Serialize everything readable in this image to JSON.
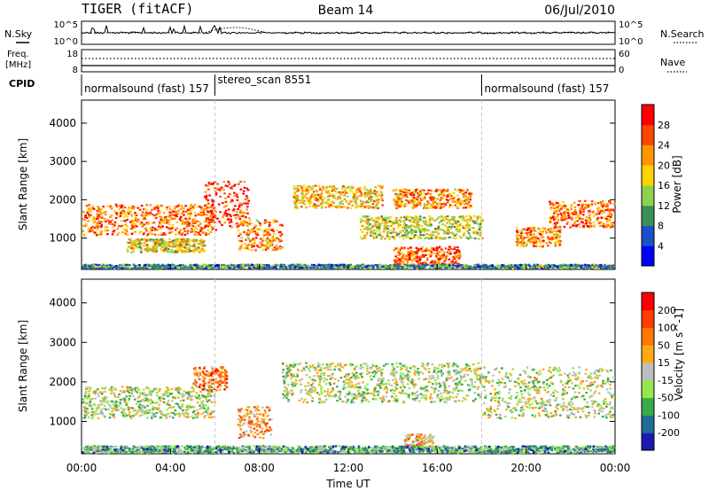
{
  "header": {
    "radar": "TIGER (fitACF)",
    "beam": "Beam 14",
    "date": "06/Jul/2010"
  },
  "top_panels": {
    "nsky_label": "N.Sky",
    "nsky_tick_top": "10^5",
    "nsky_tick_bottom": "10^0",
    "nsearch_label": "N.Search",
    "nsearch_tick_top": "10^5",
    "nsearch_tick_bottom": "10^0",
    "freq_label_1": "Freq.",
    "freq_label_2": "[MHz]",
    "freq_tick_top": "18",
    "freq_tick_bottom": "8",
    "nave_label": "Nave",
    "nave_tick_top": "60",
    "nave_tick_bottom": "0",
    "cpid_label": "CPID",
    "cpid_segments": [
      {
        "label": "normalsound (fast) 157",
        "start": 0,
        "end": 6
      },
      {
        "label": "stereo_scan 8551",
        "start": 6,
        "end": 18
      },
      {
        "label": "normalsound (fast) 157",
        "start": 18,
        "end": 24
      }
    ]
  },
  "chart_data": [
    {
      "type": "heatmap",
      "name": "power",
      "ylabel": "Slant Range [km]",
      "xlabel": "Time UT",
      "x_range_hours": [
        0,
        24
      ],
      "ylim": [
        180,
        4600
      ],
      "yticks": [
        1000,
        2000,
        3000,
        4000
      ],
      "colorbar_label": "Power [dB]",
      "colorbar_ticks": [
        "4",
        "8",
        "12",
        "16",
        "20",
        "24",
        "28"
      ],
      "colorbar_colors": [
        "#0000ff",
        "#1c50c8",
        "#3a8f5a",
        "#8cd24a",
        "#ffd200",
        "#ff9600",
        "#ff4600",
        "#ff0000"
      ],
      "clusters": [
        {
          "t0": 0.0,
          "t1": 6.0,
          "r0": 1100,
          "r1": 1900,
          "level": 0.75
        },
        {
          "t0": 2.0,
          "t1": 5.5,
          "r0": 650,
          "r1": 1000,
          "level": 0.55
        },
        {
          "t0": 5.5,
          "t1": 7.5,
          "r0": 1300,
          "r1": 2500,
          "level": 0.85
        },
        {
          "t0": 7.0,
          "t1": 9.0,
          "r0": 700,
          "r1": 1500,
          "level": 0.7
        },
        {
          "t0": 9.5,
          "t1": 13.5,
          "r0": 1800,
          "r1": 2400,
          "level": 0.6
        },
        {
          "t0": 14.0,
          "t1": 17.5,
          "r0": 1800,
          "r1": 2300,
          "level": 0.7
        },
        {
          "t0": 14.0,
          "t1": 17.0,
          "r0": 300,
          "r1": 800,
          "level": 0.8
        },
        {
          "t0": 12.5,
          "t1": 18.0,
          "r0": 1000,
          "r1": 1600,
          "level": 0.5
        },
        {
          "t0": 19.5,
          "t1": 21.5,
          "r0": 800,
          "r1": 1300,
          "level": 0.7
        },
        {
          "t0": 21.0,
          "t1": 24.0,
          "r0": 1300,
          "r1": 2000,
          "level": 0.75
        },
        {
          "t0": 0.0,
          "t1": 24.0,
          "r0": 180,
          "r1": 330,
          "level": 0.3
        }
      ]
    },
    {
      "type": "heatmap",
      "name": "velocity",
      "ylabel": "Slant Range [km]",
      "xlabel": "Time UT",
      "x_range_hours": [
        0,
        24
      ],
      "ylim": [
        180,
        4600
      ],
      "yticks": [
        1000,
        2000,
        3000,
        4000
      ],
      "colorbar_label": "Velocity [m s^-1]",
      "colorbar_ticks": [
        "200",
        "100",
        "50",
        "15",
        "-15",
        "-50",
        "-100",
        "-200"
      ],
      "colorbar_colors": [
        "#1a1ab4",
        "#1f6e96",
        "#3caa4a",
        "#96e650",
        "#bebebe",
        "#ffaa14",
        "#ff7800",
        "#ff3c00",
        "#ff0000"
      ],
      "clusters": [
        {
          "t0": 0.0,
          "t1": 6.0,
          "r0": 1100,
          "r1": 1900,
          "level": 0.45
        },
        {
          "t0": 5.0,
          "t1": 6.5,
          "r0": 1800,
          "r1": 2400,
          "level": 0.75
        },
        {
          "t0": 7.0,
          "t1": 8.5,
          "r0": 600,
          "r1": 1400,
          "level": 0.65
        },
        {
          "t0": 9.0,
          "t1": 18.0,
          "r0": 1500,
          "r1": 2500,
          "level": 0.45
        },
        {
          "t0": 14.5,
          "t1": 15.8,
          "r0": 300,
          "r1": 700,
          "level": 0.62
        },
        {
          "t0": 18.0,
          "t1": 24.0,
          "r0": 1100,
          "r1": 2400,
          "level": 0.45
        },
        {
          "t0": 0.0,
          "t1": 24.0,
          "r0": 180,
          "r1": 400,
          "level": 0.3
        }
      ]
    }
  ],
  "x_axis": {
    "ticks": [
      "00:00",
      "04:00",
      "08:00",
      "12:00",
      "16:00",
      "20:00",
      "00:00"
    ],
    "label": "Time UT"
  }
}
